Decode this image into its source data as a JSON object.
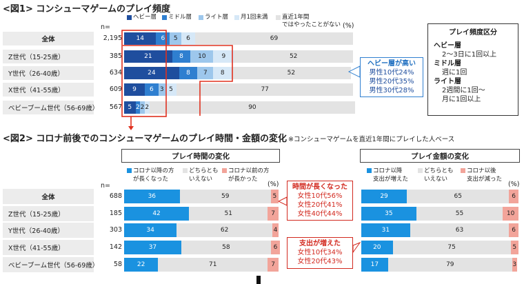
{
  "fig1": {
    "title": "<図1> コンシューマゲームのプレイ頻度",
    "n_label": "n=",
    "pct_unit": "(%)",
    "legend": [
      "ヘビー層",
      "ミドル層",
      "ライト層",
      "月1回未満",
      "直近1年間\nではやったことがない"
    ],
    "colors": [
      "#1f4e9e",
      "#2f7fd0",
      "#9dc7ec",
      "#d6e8f7",
      "#e3e3e3"
    ]
  },
  "fig2": {
    "title": "<図2> コロナ前後でのコンシューマゲームのプレイ時間・金額の変化",
    "note": "※コンシューマゲームを直近1年間にプレイした人ベース",
    "n_label": "n=",
    "pct_unit": "(%)",
    "time_header": "プレイ時間の変化",
    "money_header": "プレイ金額の変化",
    "time_legend": [
      "コロナ以降の方\nが長くなった",
      "どちらとも\nいえない",
      "コロナ以前の方\nが長かった"
    ],
    "money_legend": [
      "コロナ以降\n支出が増えた",
      "どちらとも\nいえない",
      "コロナ以後\n支出が減った"
    ],
    "colors": [
      "#1a92e0",
      "#e3e3e3",
      "#f2a49a"
    ]
  },
  "side_box": {
    "title": "プレイ頻度区分",
    "items": [
      {
        "name": "ヘビー層",
        "desc": [
          "2～3日に1回以上"
        ]
      },
      {
        "name": "ミドル層",
        "desc": [
          "週に1回"
        ]
      },
      {
        "name": "ライト層",
        "desc": [
          "2週間に1回～",
          "月に1回以上"
        ]
      }
    ]
  },
  "callouts": {
    "heavy": {
      "title": "ヘビー層が高い",
      "lines": [
        "男性10代24%",
        "男性20代35%",
        "男性30代28%"
      ]
    },
    "time": {
      "title": "時間が長くなった",
      "lines": [
        "女性10代56%",
        "女性20代41%",
        "女性40代44%"
      ]
    },
    "money": {
      "title": "支出が増えた",
      "lines": [
        "女性10代34%",
        "女性20代43%"
      ]
    }
  },
  "chart_data": [
    {
      "type": "bar",
      "stacked": true,
      "orientation": "horizontal",
      "title": "<図1> コンシューマゲームのプレイ頻度",
      "categories": [
        "全体",
        "Z世代（15-25歳）",
        "Y世代（26-40歳）",
        "X世代（41-55歳）",
        "ベビーブーム世代（56-69歳）"
      ],
      "n": [
        2195,
        385,
        634,
        609,
        567
      ],
      "series": [
        {
          "name": "ヘビー層",
          "values": [
            14,
            21,
            24,
            9,
            5
          ]
        },
        {
          "name": "ミドル層",
          "values": [
            6,
            8,
            8,
            6,
            2
          ]
        },
        {
          "name": "ライト層",
          "values": [
            5,
            10,
            7,
            3,
            2
          ]
        },
        {
          "name": "月1回未満",
          "values": [
            6,
            9,
            8,
            5,
            2
          ]
        },
        {
          "name": "直近1年間ではやったことがない",
          "values": [
            69,
            52,
            52,
            77,
            90
          ]
        }
      ]
    },
    {
      "type": "bar",
      "stacked": true,
      "orientation": "horizontal",
      "title": "プレイ時間の変化",
      "categories": [
        "全体",
        "Z世代（15-25歳）",
        "Y世代（26-40歳）",
        "X世代（41-55歳）",
        "ベビーブーム世代（56-69歳）"
      ],
      "n": [
        688,
        185,
        303,
        142,
        58
      ],
      "series": [
        {
          "name": "コロナ以降の方が長くなった",
          "values": [
            36,
            42,
            34,
            37,
            22
          ]
        },
        {
          "name": "どちらともいえない",
          "values": [
            59,
            51,
            62,
            58,
            71
          ]
        },
        {
          "name": "コロナ以前の方が長かった",
          "values": [
            5,
            7,
            4,
            6,
            7
          ]
        }
      ]
    },
    {
      "type": "bar",
      "stacked": true,
      "orientation": "horizontal",
      "title": "プレイ金額の変化",
      "categories": [
        "全体",
        "Z世代（15-25歳）",
        "Y世代（26-40歳）",
        "X世代（41-55歳）",
        "ベビーブーム世代（56-69歳）"
      ],
      "n": [
        688,
        185,
        303,
        142,
        58
      ],
      "series": [
        {
          "name": "コロナ以降支出が増えた",
          "values": [
            29,
            35,
            31,
            20,
            17
          ]
        },
        {
          "name": "どちらともいえない",
          "values": [
            65,
            55,
            63,
            75,
            79
          ]
        },
        {
          "name": "コロナ以後支出が減った",
          "values": [
            6,
            10,
            6,
            5,
            3
          ]
        }
      ]
    }
  ]
}
